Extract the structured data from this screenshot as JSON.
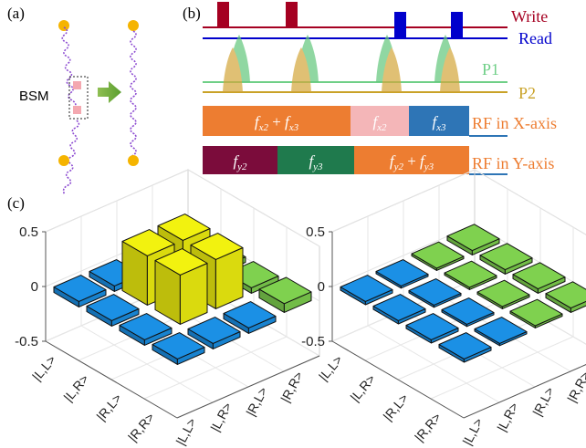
{
  "panels": {
    "a": {
      "label": "(a)",
      "bsm_label": "BSM"
    },
    "b": {
      "label": "(b)",
      "tracks": {
        "write": "Write",
        "read": "Read",
        "p1": "P1",
        "p2": "P2"
      },
      "rf_x": {
        "segments": [
          {
            "base1": "f",
            "sub1": "x2",
            "op": " + ",
            "base2": "f",
            "sub2": "x3",
            "color": "#ed7d31"
          },
          {
            "base1": "f",
            "sub1": "x2",
            "color": "#f4b6b8"
          },
          {
            "base1": "f",
            "sub1": "x3",
            "color": "#2e75b6"
          }
        ],
        "label": "RF in X-axis"
      },
      "rf_y": {
        "segments": [
          {
            "base1": "f",
            "sub1": "y2",
            "color": "#7b0c3b"
          },
          {
            "base1": "f",
            "sub1": "y3",
            "color": "#1f7a4d"
          },
          {
            "base1": "f",
            "sub1": "y2",
            "op": " + ",
            "base2": "f",
            "sub2": "y3",
            "color": "#ed7d31"
          }
        ],
        "label": "RF in Y-axis"
      },
      "colors": {
        "write": "#a50021",
        "read": "#0000cc",
        "p1": "#6fcf87",
        "p2": "#c9a227"
      }
    },
    "c": {
      "label": "(c)",
      "z_ticks": [
        "0.5",
        "0",
        "-0.5"
      ],
      "row_labels": [
        "|L,L>",
        "|L,R>",
        "|R,L>",
        "|R,R>"
      ],
      "col_labels": [
        "|L,L>",
        "|L,R>",
        "|R,L>",
        "|R,R>"
      ]
    }
  },
  "chart_data": [
    {
      "type": "bar3d",
      "title": "",
      "zlim": [
        -0.5,
        0.5
      ],
      "rows": [
        "|L,L>",
        "|L,R>",
        "|R,L>",
        "|R,R>"
      ],
      "cols": [
        "|L,L>",
        "|L,R>",
        "|R,L>",
        "|R,R>"
      ],
      "values": [
        [
          -0.05,
          -0.05,
          -0.05,
          -0.05
        ],
        [
          -0.05,
          0.45,
          0.45,
          0.05
        ],
        [
          -0.05,
          0.45,
          0.45,
          0.05
        ],
        [
          -0.05,
          -0.05,
          -0.05,
          0.08
        ]
      ],
      "colormap": [
        "#3a2ab5",
        "#1b90e5",
        "#7fd14f",
        "#f2f20f"
      ]
    },
    {
      "type": "bar3d",
      "title": "",
      "zlim": [
        -0.5,
        0.5
      ],
      "rows": [
        "|L,L>",
        "|L,R>",
        "|R,L>",
        "|R,R>"
      ],
      "cols": [
        "|L,L>",
        "|L,R>",
        "|R,L>",
        "|R,R>"
      ],
      "values": [
        [
          -0.03,
          -0.02,
          0.02,
          0.04
        ],
        [
          -0.03,
          -0.02,
          0.02,
          0.04
        ],
        [
          -0.03,
          -0.02,
          0.02,
          0.04
        ],
        [
          -0.03,
          -0.02,
          0.02,
          0.04
        ]
      ],
      "colormap": [
        "#3a2ab5",
        "#1b90e5",
        "#7fd14f",
        "#f2f20f"
      ]
    }
  ]
}
